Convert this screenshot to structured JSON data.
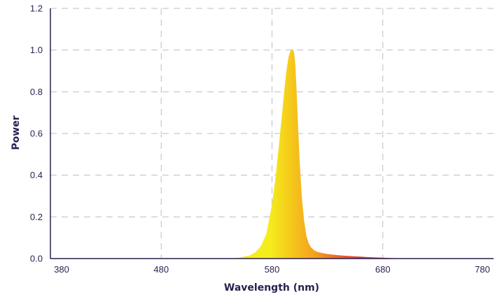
{
  "chart_data": {
    "type": "area",
    "title": "",
    "xlabel": "Wavelength (nm)",
    "ylabel": "Power",
    "xlim": [
      380,
      780
    ],
    "ylim": [
      0,
      1.2
    ],
    "x_ticks": [
      "380",
      "480",
      "580",
      "680",
      "780"
    ],
    "y_ticks": [
      "0.0",
      "0.2",
      "0.4",
      "0.6",
      "0.8",
      "1.0",
      "1.2"
    ],
    "grid": true,
    "legend": "none",
    "colors": {
      "axis": "#2a1f4f",
      "grid": "#bcbcc8",
      "gradient": [
        "#f4ed1c",
        "#f5c71a",
        "#f4a11f",
        "#ee6a23",
        "#dc3a2c",
        "#cc2b3a"
      ]
    },
    "series": [
      {
        "x": [
          540,
          550,
          560,
          565,
          570,
          575,
          580,
          583,
          586,
          589,
          591,
          593,
          595,
          597,
          598,
          599,
          600,
          601,
          602,
          603,
          605,
          607,
          609,
          611,
          613,
          615,
          618,
          621,
          625,
          630,
          640,
          650,
          660,
          670,
          680,
          690,
          700,
          720,
          740,
          760,
          780
        ],
        "y": [
          0.0,
          0.004,
          0.015,
          0.03,
          0.06,
          0.12,
          0.26,
          0.38,
          0.53,
          0.69,
          0.8,
          0.9,
          0.97,
          1.0,
          1.005,
          1.0,
          0.985,
          0.93,
          0.83,
          0.7,
          0.46,
          0.29,
          0.18,
          0.11,
          0.075,
          0.055,
          0.04,
          0.032,
          0.027,
          0.022,
          0.016,
          0.012,
          0.009,
          0.006,
          0.004,
          0.002,
          0.0,
          0.0,
          0.0,
          0.0,
          0.0
        ]
      }
    ]
  }
}
